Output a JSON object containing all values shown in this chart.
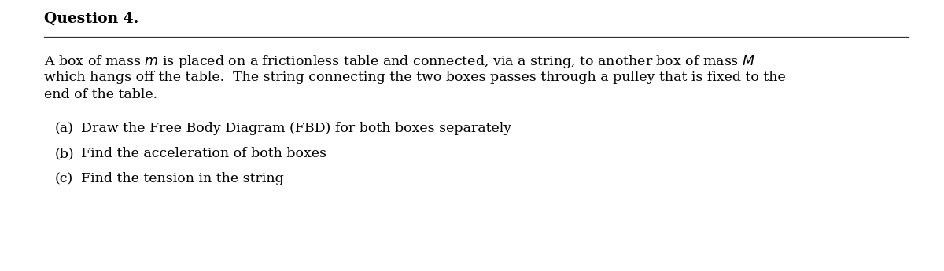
{
  "background_color": "#ffffff",
  "title": "Question 4.",
  "title_fontsize": 13.5,
  "title_bold": true,
  "body_text_line1": "A box of mass $m$ is placed on a frictionless table and connected, via a string, to another box of mass $M$",
  "body_text_line2": "which hangs off the table.  The string connecting the two boxes passes through a pulley that is fixed to the",
  "body_text_line3": "end of the table.",
  "body_fontsize": 12.5,
  "items": [
    {
      "label": "(a)",
      "text": "Draw the Free Body Diagram (FBD) for both boxes separately"
    },
    {
      "label": "(b)",
      "text": "Find the acceleration of both boxes"
    },
    {
      "label": "(c)",
      "text": "Find the tension in the string"
    }
  ],
  "item_fontsize": 12.5,
  "figwidth": 12.0,
  "figheight": 3.45,
  "dpi": 100
}
